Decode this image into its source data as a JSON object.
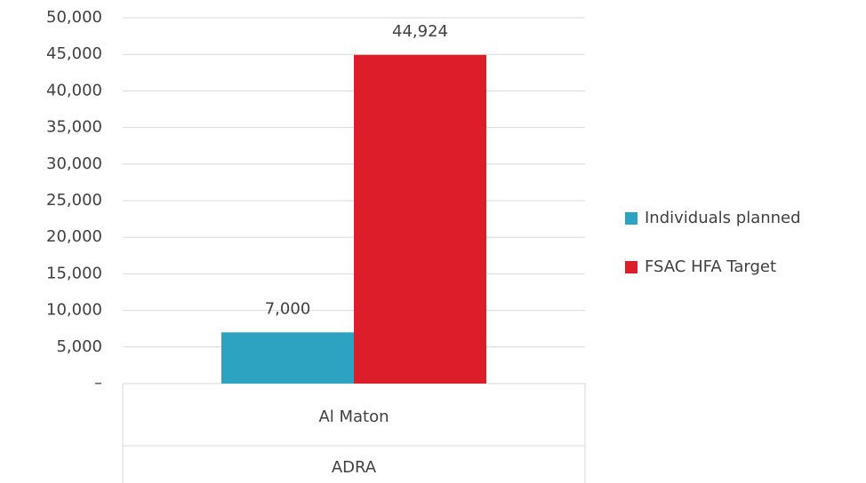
{
  "chart_data": {
    "type": "bar",
    "categories": [
      "Al Maton"
    ],
    "groups": [
      "ADRA"
    ],
    "series": [
      {
        "name": "Individuals planned",
        "color": "#2ea3c1",
        "values": [
          7000
        ],
        "value_labels": [
          "7,000"
        ]
      },
      {
        "name": "FSAC HFA Target",
        "color": "#dc1e2a",
        "values": [
          44924
        ],
        "value_labels": [
          "44,924"
        ]
      }
    ],
    "ylim": [
      0,
      50000
    ],
    "yticks": [
      {
        "value": 0,
        "label": "–"
      },
      {
        "value": 5000,
        "label": "5,000"
      },
      {
        "value": 10000,
        "label": "10,000"
      },
      {
        "value": 15000,
        "label": "15,000"
      },
      {
        "value": 20000,
        "label": "20,000"
      },
      {
        "value": 25000,
        "label": "25,000"
      },
      {
        "value": 30000,
        "label": "30,000"
      },
      {
        "value": 35000,
        "label": "35,000"
      },
      {
        "value": 40000,
        "label": "40,000"
      },
      {
        "value": 45000,
        "label": "45,000"
      },
      {
        "value": 50000,
        "label": "50,000"
      }
    ],
    "grid": true,
    "legend": "right"
  }
}
